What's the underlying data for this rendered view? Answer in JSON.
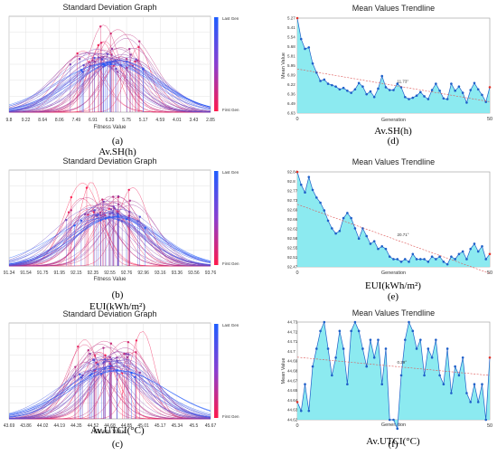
{
  "colors": {
    "last_gen": "#1e5eff",
    "first_gen": "#ff1a4a",
    "trend_fill": "#7fe8ee",
    "trend_line": "#1f5fc9"
  },
  "legend": {
    "top": "Last Gen",
    "bottom": "First Gen"
  },
  "panels": {
    "a": {
      "label": "(a)",
      "caption": "Av.SH(h)"
    },
    "b": {
      "label": "(b)",
      "caption": "EUI(kWh/m²)"
    },
    "c": {
      "label": "(c)",
      "caption": "Av.UTCI(°C)"
    },
    "d": {
      "label": "(d)",
      "caption": "Av.SH(h)"
    },
    "e": {
      "label": "(e)",
      "caption": "EUI(kWh/m²)"
    },
    "f": {
      "label": "(f)",
      "caption": "Av.UTCI(°C)"
    }
  },
  "chart_data": [
    {
      "id": "a",
      "type": "line",
      "title": "Standard Deviation Graph",
      "xlabel": "Fitness Value",
      "x_ticks": [
        "9.8",
        "9.22",
        "8.64",
        "8.06",
        "7.49",
        "6.91",
        "6.33",
        "5.75",
        "5.17",
        "4.59",
        "4.01",
        "3.43",
        "2.85"
      ],
      "x_range": [
        9.8,
        2.85
      ],
      "legend": "right",
      "grid": true
    },
    {
      "id": "b",
      "type": "line",
      "title": "Standard Deviation Graph",
      "xlabel": "Fitness Value",
      "x_ticks": [
        "91.34",
        "91.54",
        "91.75",
        "91.95",
        "92.15",
        "92.35",
        "92.55",
        "92.76",
        "92.96",
        "93.16",
        "93.36",
        "93.56",
        "93.76"
      ],
      "x_range": [
        91.34,
        93.76
      ],
      "legend": "right",
      "grid": true
    },
    {
      "id": "c",
      "type": "line",
      "title": "Standard Deviation Graph",
      "xlabel": "Fitness Value",
      "x_ticks": [
        "43.69",
        "43.86",
        "44.02",
        "44.19",
        "44.35",
        "44.52",
        "44.68",
        "44.85",
        "45.01",
        "45.17",
        "45.34",
        "45.5",
        "45.67"
      ],
      "x_range": [
        43.69,
        45.67
      ],
      "legend": "right",
      "grid": true
    },
    {
      "id": "d",
      "type": "area",
      "title": "Mean Values Trendline",
      "xlabel": "Generation",
      "ylabel": "Mean Value",
      "y_ticks": [
        "5.27",
        "5.41",
        "5.54",
        "5.68",
        "5.81",
        "5.95",
        "6.09",
        "6.22",
        "6.36",
        "6.49",
        "6.63"
      ],
      "y_range_top_bottom": [
        5.27,
        6.63
      ],
      "inverted": true,
      "x_ticks": [
        "0",
        "50"
      ],
      "x_range": [
        0,
        50
      ],
      "trend_label": "11.73°",
      "values": [
        5.27,
        5.57,
        5.71,
        5.69,
        5.92,
        6.05,
        6.17,
        6.15,
        6.21,
        6.23,
        6.25,
        6.29,
        6.27,
        6.31,
        6.34,
        6.29,
        6.2,
        6.25,
        6.36,
        6.32,
        6.4,
        6.28,
        6.1,
        6.26,
        6.3,
        6.3,
        6.21,
        6.26,
        6.4,
        6.43,
        6.41,
        6.38,
        6.33,
        6.39,
        6.43,
        6.3,
        6.21,
        6.31,
        6.42,
        6.43,
        6.21,
        6.31,
        6.25,
        6.34,
        6.48,
        6.3,
        6.2,
        6.29,
        6.37,
        6.47,
        6.26
      ]
    },
    {
      "id": "e",
      "type": "area",
      "title": "Mean Values Trendline",
      "xlabel": "Generation",
      "y_ticks": [
        "92.84",
        "92.8",
        "92.77",
        "92.73",
        "92.69",
        "92.66",
        "92.62",
        "92.58",
        "92.55",
        "92.51",
        "92.47"
      ],
      "y_range_top_bottom": [
        92.84,
        92.47
      ],
      "inverted": false,
      "x_ticks": [
        "0",
        "50"
      ],
      "x_range": [
        0,
        50
      ],
      "trend_label": "20.71°",
      "values": [
        92.84,
        92.79,
        92.76,
        92.82,
        92.77,
        92.74,
        92.72,
        92.69,
        92.65,
        92.62,
        92.6,
        92.61,
        92.66,
        92.68,
        92.66,
        92.62,
        92.58,
        92.62,
        92.59,
        92.56,
        92.57,
        92.54,
        92.55,
        92.54,
        92.51,
        92.5,
        92.5,
        92.49,
        92.5,
        92.49,
        92.52,
        92.5,
        92.5,
        92.5,
        92.49,
        92.51,
        92.5,
        92.51,
        92.49,
        92.48,
        92.51,
        92.5,
        92.52,
        92.53,
        92.5,
        92.54,
        92.56,
        92.53,
        92.55,
        92.5,
        92.52
      ]
    },
    {
      "id": "f",
      "type": "area",
      "title": "Mean Values Trendline",
      "xlabel": "Generation",
      "ylabel": "Mean Value",
      "y_ticks": [
        "44.73",
        "44.72",
        "44.71",
        "44.7",
        "44.69",
        "44.68",
        "44.67",
        "44.65",
        "44.64",
        "44.63",
        "44.62"
      ],
      "y_range_top_bottom": [
        44.73,
        44.62
      ],
      "inverted": false,
      "x_ticks": [
        "0",
        "50"
      ],
      "x_range": [
        0,
        50
      ],
      "trend_label": "0.29°",
      "values": [
        44.64,
        44.63,
        44.66,
        44.63,
        44.68,
        44.7,
        44.72,
        44.73,
        44.7,
        44.67,
        44.69,
        44.72,
        44.7,
        44.66,
        44.72,
        44.73,
        44.72,
        44.7,
        44.68,
        44.71,
        44.69,
        44.71,
        44.66,
        44.7,
        44.62,
        44.62,
        44.61,
        44.67,
        44.71,
        44.73,
        44.72,
        44.7,
        44.71,
        44.67,
        44.7,
        44.69,
        44.71,
        44.67,
        44.66,
        44.7,
        44.65,
        44.68,
        44.67,
        44.69,
        44.65,
        44.64,
        44.66,
        44.64,
        44.66,
        44.62,
        44.69
      ]
    }
  ]
}
